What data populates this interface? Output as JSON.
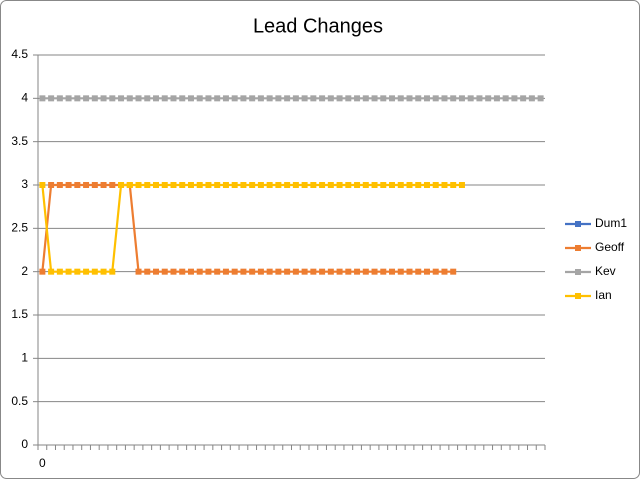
{
  "chart_data": {
    "type": "line",
    "title": "Lead Changes",
    "categories": [
      "0",
      null,
      null,
      null,
      null,
      null,
      null,
      null,
      null,
      null,
      null,
      null,
      null,
      null,
      null,
      null,
      null,
      null,
      null,
      null,
      null,
      null,
      null,
      null,
      null,
      null,
      null,
      null,
      null,
      null,
      null,
      null,
      null,
      null,
      null,
      null,
      null,
      null,
      null,
      null,
      null,
      null,
      null,
      null,
      null,
      null,
      null,
      null,
      null,
      null,
      null,
      null,
      null,
      null,
      null,
      null,
      null,
      null
    ],
    "series": [
      {
        "name": "Dum1",
        "color": "#4472c4",
        "values": [
          null,
          null,
          null,
          null,
          null,
          null,
          null,
          null,
          null,
          null,
          null,
          null,
          null,
          null,
          null,
          null,
          null,
          null,
          null,
          null,
          null,
          null,
          null,
          null,
          null,
          null,
          null,
          null,
          null,
          null,
          null,
          null,
          null,
          null,
          null,
          null,
          null,
          null,
          null,
          null,
          null,
          null,
          null,
          null,
          null,
          null,
          null,
          null,
          null,
          null,
          null,
          null,
          null,
          null,
          null,
          null,
          null,
          null
        ]
      },
      {
        "name": "Geoff",
        "color": "#ed7d31",
        "values": [
          2,
          3,
          3,
          3,
          3,
          3,
          3,
          3,
          3,
          3,
          3,
          2,
          2,
          2,
          2,
          2,
          2,
          2,
          2,
          2,
          2,
          2,
          2,
          2,
          2,
          2,
          2,
          2,
          2,
          2,
          2,
          2,
          2,
          2,
          2,
          2,
          2,
          2,
          2,
          2,
          2,
          2,
          2,
          2,
          2,
          2,
          2,
          2,
          null,
          null,
          null,
          null,
          null,
          null,
          null,
          null,
          null,
          null
        ]
      },
      {
        "name": "Kev",
        "color": "#a5a5a5",
        "values": [
          4,
          4,
          4,
          4,
          4,
          4,
          4,
          4,
          4,
          4,
          4,
          4,
          4,
          4,
          4,
          4,
          4,
          4,
          4,
          4,
          4,
          4,
          4,
          4,
          4,
          4,
          4,
          4,
          4,
          4,
          4,
          4,
          4,
          4,
          4,
          4,
          4,
          4,
          4,
          4,
          4,
          4,
          4,
          4,
          4,
          4,
          4,
          4,
          4,
          4,
          4,
          4,
          4,
          4,
          4,
          4,
          4,
          4
        ]
      },
      {
        "name": "Ian",
        "color": "#ffc000",
        "values": [
          3,
          2,
          2,
          2,
          2,
          2,
          2,
          2,
          2,
          3,
          3,
          3,
          3,
          3,
          3,
          3,
          3,
          3,
          3,
          3,
          3,
          3,
          3,
          3,
          3,
          3,
          3,
          3,
          3,
          3,
          3,
          3,
          3,
          3,
          3,
          3,
          3,
          3,
          3,
          3,
          3,
          3,
          3,
          3,
          3,
          3,
          3,
          3,
          3,
          null,
          null,
          null,
          null,
          null,
          null,
          null,
          null,
          null
        ]
      }
    ],
    "ylim": [
      0,
      4.5
    ],
    "yticks": [
      0,
      0.5,
      1,
      1.5,
      2,
      2.5,
      3,
      3.5,
      4,
      4.5
    ],
    "grid": true,
    "legend": "right"
  }
}
